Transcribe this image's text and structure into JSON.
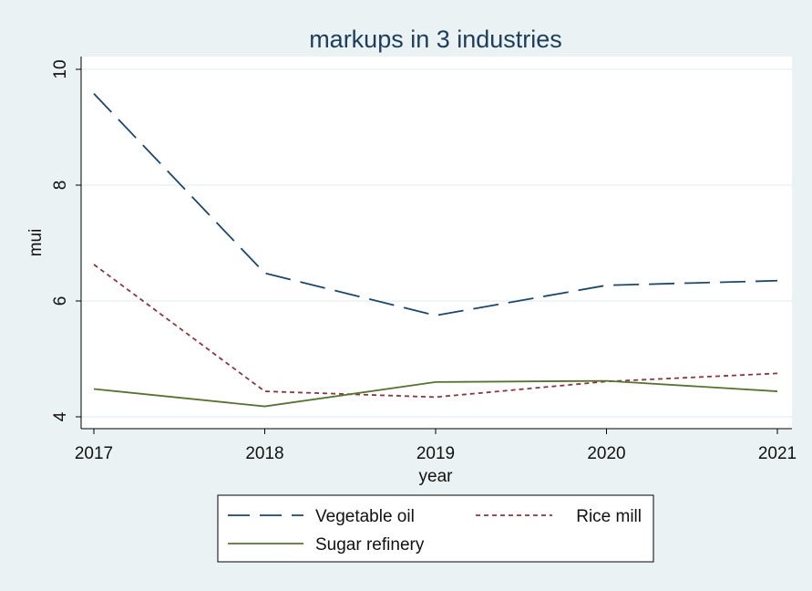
{
  "chart_data": {
    "type": "line",
    "title": "markups in 3 industries",
    "xlabel": "year",
    "ylabel": "mui",
    "x": [
      2017,
      2018,
      2019,
      2020,
      2021
    ],
    "xticks": [
      "2017",
      "2018",
      "2019",
      "2020",
      "2021"
    ],
    "xlim": [
      2017,
      2021
    ],
    "ylim": [
      4,
      10
    ],
    "yticks": [
      "4",
      "6",
      "8",
      "10"
    ],
    "grid": true,
    "legend_position": "bottom",
    "series": [
      {
        "name": "Vegetable oil",
        "values": [
          9.58,
          6.48,
          5.75,
          6.27,
          6.35
        ],
        "color": "#1a476f",
        "style": "long-dash"
      },
      {
        "name": "Rice mill",
        "values": [
          6.63,
          4.44,
          4.34,
          4.61,
          4.75
        ],
        "color": "#90353b",
        "style": "short-dash"
      },
      {
        "name": "Sugar refinery",
        "values": [
          4.48,
          4.18,
          4.6,
          4.62,
          4.44
        ],
        "color": "#55752f",
        "style": "solid"
      }
    ]
  }
}
